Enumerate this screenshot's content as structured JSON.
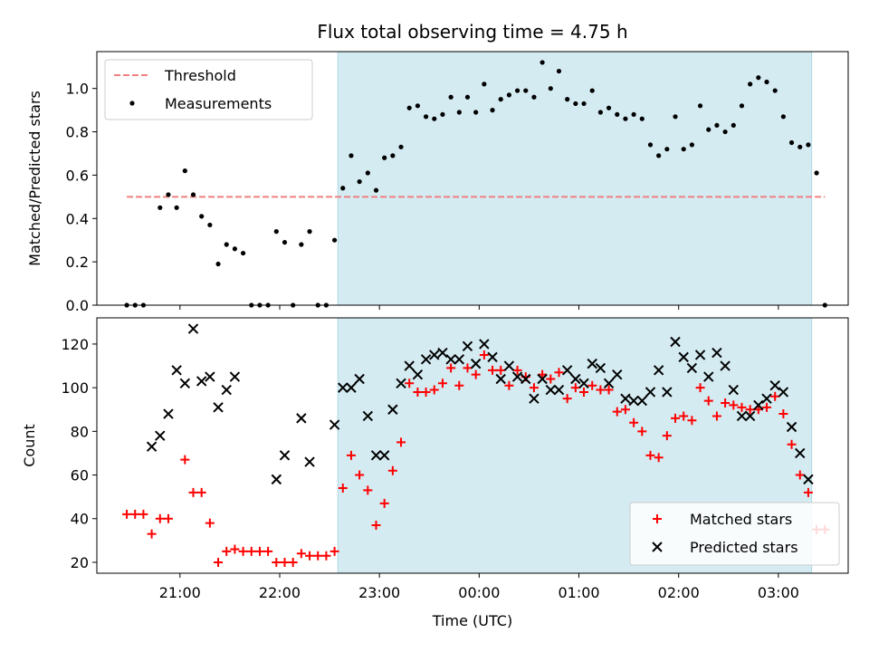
{
  "figure": {
    "title": "Flux total observing time = 4.75 h",
    "xlabel": "Time (UTC)",
    "x_ticks": [
      "21:00",
      "22:00",
      "23:00",
      "00:00",
      "01:00",
      "02:00",
      "03:00"
    ],
    "shaded_span": [
      "22:35",
      "03:20"
    ],
    "shade_color": "#add8e6"
  },
  "chart_data": [
    {
      "type": "scatter",
      "xlabel": "",
      "ylabel": "Matched/Predicted stars",
      "ylim": [
        0,
        1.17
      ],
      "yticks": [
        "0.0",
        "0.2",
        "0.4",
        "0.6",
        "0.8",
        "1.0"
      ],
      "legend": "top-left",
      "threshold": {
        "name": "Threshold",
        "value": 0.5,
        "x_range": [
          "20:28",
          "03:28"
        ],
        "color": "#f08080"
      },
      "series": [
        {
          "name": "Measurements",
          "color": "#000000",
          "points": [
            [
              "20:28",
              0
            ],
            [
              "20:33",
              0
            ],
            [
              "20:38",
              0
            ],
            [
              "20:48",
              0.45
            ],
            [
              "20:53",
              0.51
            ],
            [
              "20:58",
              0.45
            ],
            [
              "21:03",
              0.62
            ],
            [
              "21:08",
              0.51
            ],
            [
              "21:13",
              0.41
            ],
            [
              "21:18",
              0.37
            ],
            [
              "21:23",
              0.19
            ],
            [
              "21:28",
              0.28
            ],
            [
              "21:33",
              0.26
            ],
            [
              "21:38",
              0.24
            ],
            [
              "21:43",
              0
            ],
            [
              "21:48",
              0
            ],
            [
              "21:53",
              0
            ],
            [
              "21:58",
              0.34
            ],
            [
              "22:03",
              0.29
            ],
            [
              "22:08",
              0
            ],
            [
              "22:13",
              0.28
            ],
            [
              "22:18",
              0.34
            ],
            [
              "22:23",
              0
            ],
            [
              "22:28",
              0
            ],
            [
              "22:33",
              0.3
            ],
            [
              "22:38",
              0.54
            ],
            [
              "22:43",
              0.69
            ],
            [
              "22:48",
              0.57
            ],
            [
              "22:53",
              0.61
            ],
            [
              "22:58",
              0.53
            ],
            [
              "23:03",
              0.68
            ],
            [
              "23:08",
              0.69
            ],
            [
              "23:13",
              0.73
            ],
            [
              "23:18",
              0.91
            ],
            [
              "23:23",
              0.92
            ],
            [
              "23:28",
              0.87
            ],
            [
              "23:33",
              0.86
            ],
            [
              "23:38",
              0.88
            ],
            [
              "23:43",
              0.96
            ],
            [
              "23:48",
              0.89
            ],
            [
              "23:53",
              0.96
            ],
            [
              "23:58",
              0.89
            ],
            [
              "00:03",
              1.02
            ],
            [
              "00:08",
              0.9
            ],
            [
              "00:13",
              0.95
            ],
            [
              "00:18",
              0.97
            ],
            [
              "00:23",
              0.99
            ],
            [
              "00:28",
              0.99
            ],
            [
              "00:33",
              0.96
            ],
            [
              "00:38",
              1.12
            ],
            [
              "00:43",
              1.0
            ],
            [
              "00:48",
              1.08
            ],
            [
              "00:53",
              0.95
            ],
            [
              "00:58",
              0.93
            ],
            [
              "01:03",
              0.93
            ],
            [
              "01:08",
              0.99
            ],
            [
              "01:13",
              0.89
            ],
            [
              "01:18",
              0.91
            ],
            [
              "01:23",
              0.88
            ],
            [
              "01:28",
              0.86
            ],
            [
              "01:33",
              0.88
            ],
            [
              "01:38",
              0.86
            ],
            [
              "01:43",
              0.74
            ],
            [
              "01:48",
              0.69
            ],
            [
              "01:53",
              0.72
            ],
            [
              "01:58",
              0.87
            ],
            [
              "02:03",
              0.72
            ],
            [
              "02:08",
              0.74
            ],
            [
              "02:13",
              0.92
            ],
            [
              "02:18",
              0.81
            ],
            [
              "02:23",
              0.83
            ],
            [
              "02:28",
              0.8
            ],
            [
              "02:33",
              0.83
            ],
            [
              "02:38",
              0.92
            ],
            [
              "02:43",
              1.02
            ],
            [
              "02:48",
              1.05
            ],
            [
              "02:53",
              1.03
            ],
            [
              "02:58",
              0.99
            ],
            [
              "03:03",
              0.87
            ],
            [
              "03:08",
              0.75
            ],
            [
              "03:13",
              0.73
            ],
            [
              "03:18",
              0.74
            ],
            [
              "03:23",
              0.61
            ],
            [
              "03:28",
              0
            ]
          ]
        }
      ]
    },
    {
      "type": "scatter",
      "xlabel": "Time (UTC)",
      "ylabel": "Count",
      "ylim": [
        15,
        132
      ],
      "yticks": [
        "20",
        "40",
        "60",
        "80",
        "100",
        "120"
      ],
      "legend": "bottom-right",
      "series": [
        {
          "name": "Matched stars",
          "marker": "plus",
          "color": "#ff0000",
          "points": [
            [
              "20:28",
              42
            ],
            [
              "20:33",
              42
            ],
            [
              "20:38",
              42
            ],
            [
              "20:43",
              33
            ],
            [
              "20:48",
              40
            ],
            [
              "20:53",
              40
            ],
            [
              "21:03",
              67
            ],
            [
              "21:08",
              52
            ],
            [
              "21:13",
              52
            ],
            [
              "21:18",
              38
            ],
            [
              "21:23",
              20
            ],
            [
              "21:28",
              25
            ],
            [
              "21:33",
              26
            ],
            [
              "21:38",
              25
            ],
            [
              "21:43",
              25
            ],
            [
              "21:48",
              25
            ],
            [
              "21:53",
              25
            ],
            [
              "21:58",
              20
            ],
            [
              "22:03",
              20
            ],
            [
              "22:08",
              20
            ],
            [
              "22:13",
              24
            ],
            [
              "22:18",
              23
            ],
            [
              "22:23",
              23
            ],
            [
              "22:28",
              23
            ],
            [
              "22:33",
              25
            ],
            [
              "22:38",
              54
            ],
            [
              "22:43",
              69
            ],
            [
              "22:48",
              60
            ],
            [
              "22:53",
              53
            ],
            [
              "22:58",
              37
            ],
            [
              "23:03",
              47
            ],
            [
              "23:08",
              62
            ],
            [
              "23:13",
              75
            ],
            [
              "23:18",
              102
            ],
            [
              "23:23",
              98
            ],
            [
              "23:28",
              98
            ],
            [
              "23:33",
              99
            ],
            [
              "23:38",
              102
            ],
            [
              "23:43",
              109
            ],
            [
              "23:48",
              101
            ],
            [
              "23:53",
              109
            ],
            [
              "23:58",
              106
            ],
            [
              "00:03",
              115
            ],
            [
              "00:08",
              108
            ],
            [
              "00:13",
              108
            ],
            [
              "00:18",
              101
            ],
            [
              "00:23",
              108
            ],
            [
              "00:28",
              105
            ],
            [
              "00:33",
              100
            ],
            [
              "00:38",
              106
            ],
            [
              "00:43",
              104
            ],
            [
              "00:48",
              107
            ],
            [
              "00:53",
              95
            ],
            [
              "00:58",
              100
            ],
            [
              "01:03",
              98
            ],
            [
              "01:08",
              101
            ],
            [
              "01:13",
              99
            ],
            [
              "01:18",
              99
            ],
            [
              "01:23",
              89
            ],
            [
              "01:28",
              90
            ],
            [
              "01:33",
              84
            ],
            [
              "01:38",
              80
            ],
            [
              "01:43",
              69
            ],
            [
              "01:48",
              68
            ],
            [
              "01:53",
              78
            ],
            [
              "01:58",
              86
            ],
            [
              "02:03",
              87
            ],
            [
              "02:08",
              85
            ],
            [
              "02:13",
              100
            ],
            [
              "02:18",
              94
            ],
            [
              "02:23",
              87
            ],
            [
              "02:28",
              93
            ],
            [
              "02:33",
              92
            ],
            [
              "02:38",
              91
            ],
            [
              "02:43",
              90
            ],
            [
              "02:48",
              90
            ],
            [
              "02:53",
              91
            ],
            [
              "02:58",
              96
            ],
            [
              "03:03",
              88
            ],
            [
              "03:08",
              74
            ],
            [
              "03:13",
              60
            ],
            [
              "03:18",
              52
            ],
            [
              "03:23",
              35
            ],
            [
              "03:28",
              35
            ]
          ]
        },
        {
          "name": "Predicted stars",
          "marker": "x",
          "color": "#000000",
          "points": [
            [
              "20:43",
              73
            ],
            [
              "20:48",
              78
            ],
            [
              "20:53",
              88
            ],
            [
              "20:58",
              108
            ],
            [
              "21:03",
              102
            ],
            [
              "21:08",
              127
            ],
            [
              "21:13",
              103
            ],
            [
              "21:18",
              105
            ],
            [
              "21:23",
              91
            ],
            [
              "21:28",
              99
            ],
            [
              "21:33",
              105
            ],
            [
              "21:58",
              58
            ],
            [
              "22:03",
              69
            ],
            [
              "22:13",
              86
            ],
            [
              "22:18",
              66
            ],
            [
              "22:33",
              83
            ],
            [
              "22:38",
              100
            ],
            [
              "22:43",
              100
            ],
            [
              "22:48",
              104
            ],
            [
              "22:53",
              87
            ],
            [
              "22:58",
              69
            ],
            [
              "23:03",
              69
            ],
            [
              "23:08",
              90
            ],
            [
              "23:13",
              102
            ],
            [
              "23:18",
              110
            ],
            [
              "23:23",
              106
            ],
            [
              "23:28",
              113
            ],
            [
              "23:33",
              115
            ],
            [
              "23:38",
              116
            ],
            [
              "23:43",
              113
            ],
            [
              "23:48",
              113
            ],
            [
              "23:53",
              119
            ],
            [
              "23:58",
              111
            ],
            [
              "00:03",
              120
            ],
            [
              "00:08",
              114
            ],
            [
              "00:13",
              104
            ],
            [
              "00:18",
              110
            ],
            [
              "00:23",
              105
            ],
            [
              "00:28",
              104
            ],
            [
              "00:33",
              95
            ],
            [
              "00:38",
              104
            ],
            [
              "00:43",
              99
            ],
            [
              "00:48",
              99
            ],
            [
              "00:53",
              108
            ],
            [
              "00:58",
              104
            ],
            [
              "01:03",
              102
            ],
            [
              "01:08",
              111
            ],
            [
              "01:13",
              109
            ],
            [
              "01:18",
              102
            ],
            [
              "01:23",
              106
            ],
            [
              "01:28",
              95
            ],
            [
              "01:33",
              94
            ],
            [
              "01:38",
              94
            ],
            [
              "01:43",
              98
            ],
            [
              "01:48",
              108
            ],
            [
              "01:53",
              98
            ],
            [
              "01:58",
              121
            ],
            [
              "02:03",
              114
            ],
            [
              "02:08",
              109
            ],
            [
              "02:13",
              115
            ],
            [
              "02:18",
              105
            ],
            [
              "02:23",
              116
            ],
            [
              "02:28",
              110
            ],
            [
              "02:33",
              99
            ],
            [
              "02:38",
              87
            ],
            [
              "02:43",
              87
            ],
            [
              "02:48",
              92
            ],
            [
              "02:53",
              95
            ],
            [
              "02:58",
              101
            ],
            [
              "03:03",
              98
            ],
            [
              "03:08",
              82
            ],
            [
              "03:13",
              70
            ],
            [
              "03:18",
              58
            ]
          ]
        }
      ]
    }
  ]
}
